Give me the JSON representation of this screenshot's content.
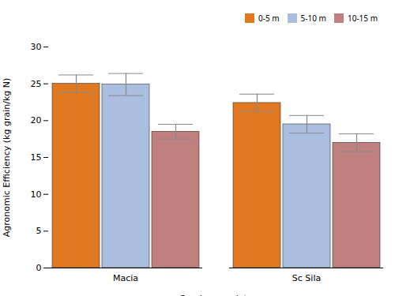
{
  "chart_data": {
    "type": "bar",
    "categories": [
      "Macia",
      "Sc Sila"
    ],
    "series": [
      {
        "name": "0-5 m",
        "color": "#E07820",
        "values": [
          25.0,
          22.4
        ],
        "errors": [
          1.2,
          1.2
        ]
      },
      {
        "name": "5-10 m",
        "color": "#aabfdf",
        "values": [
          24.9,
          19.5
        ],
        "errors": [
          1.5,
          1.2
        ]
      },
      {
        "name": "10-15 m",
        "color": "#c08080",
        "values": [
          18.5,
          17.0
        ],
        "errors": [
          1.0,
          1.2
        ]
      }
    ],
    "xlabel": "Sorghum variety",
    "ylabel": "Agronomic Efficiency (kg grain/kg N)",
    "ylim": [
      0,
      30
    ],
    "yticks": [
      0,
      5,
      10,
      15,
      20,
      25,
      30
    ],
    "legend": "upper right",
    "grid": false
  }
}
